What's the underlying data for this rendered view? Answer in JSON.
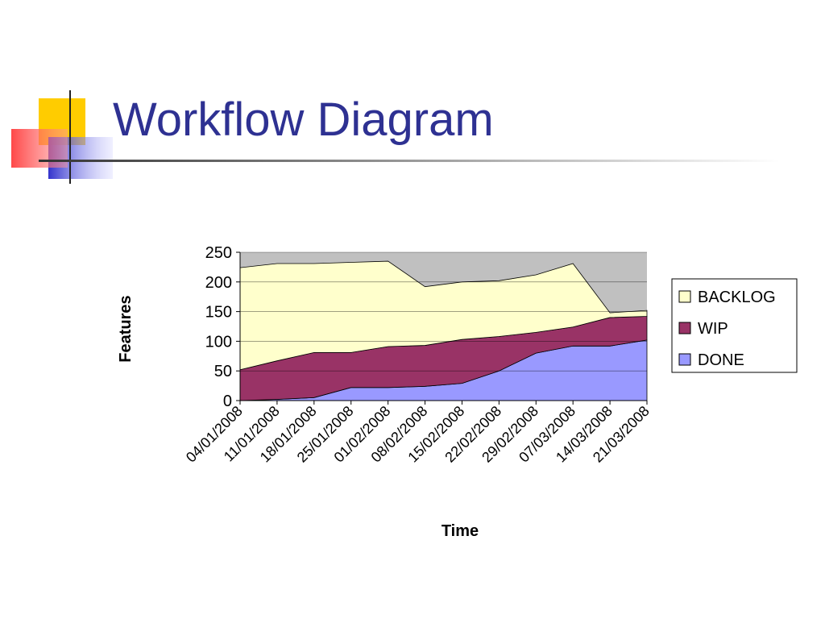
{
  "title": "Workflow Diagram",
  "chart_data": {
    "type": "stacked_area",
    "x_label": "Time",
    "y_label": "Features",
    "categories": [
      "04/01/2008",
      "11/01/2008",
      "18/01/2008",
      "25/01/2008",
      "01/02/2008",
      "08/02/2008",
      "15/02/2008",
      "22/02/2008",
      "29/02/2008",
      "07/03/2008",
      "14/03/2008",
      "21/03/2008"
    ],
    "series": [
      {
        "name": "DONE",
        "color": "#9999ff",
        "values": [
          0,
          2,
          5,
          22,
          22,
          24,
          29,
          50,
          80,
          92,
          92,
          102
        ]
      },
      {
        "name": "WIP",
        "color": "#993366",
        "values": [
          52,
          65,
          76,
          59,
          69,
          69,
          74,
          58,
          35,
          32,
          48,
          40
        ]
      },
      {
        "name": "BACKLOG",
        "color": "#ffffcc",
        "values": [
          172,
          164,
          150,
          152,
          144,
          99,
          97,
          94,
          97,
          107,
          8,
          10
        ]
      }
    ],
    "ylim": [
      0,
      250
    ],
    "yticks": [
      0,
      50,
      100,
      150,
      200,
      250
    ],
    "grid": true,
    "legend": "right"
  }
}
